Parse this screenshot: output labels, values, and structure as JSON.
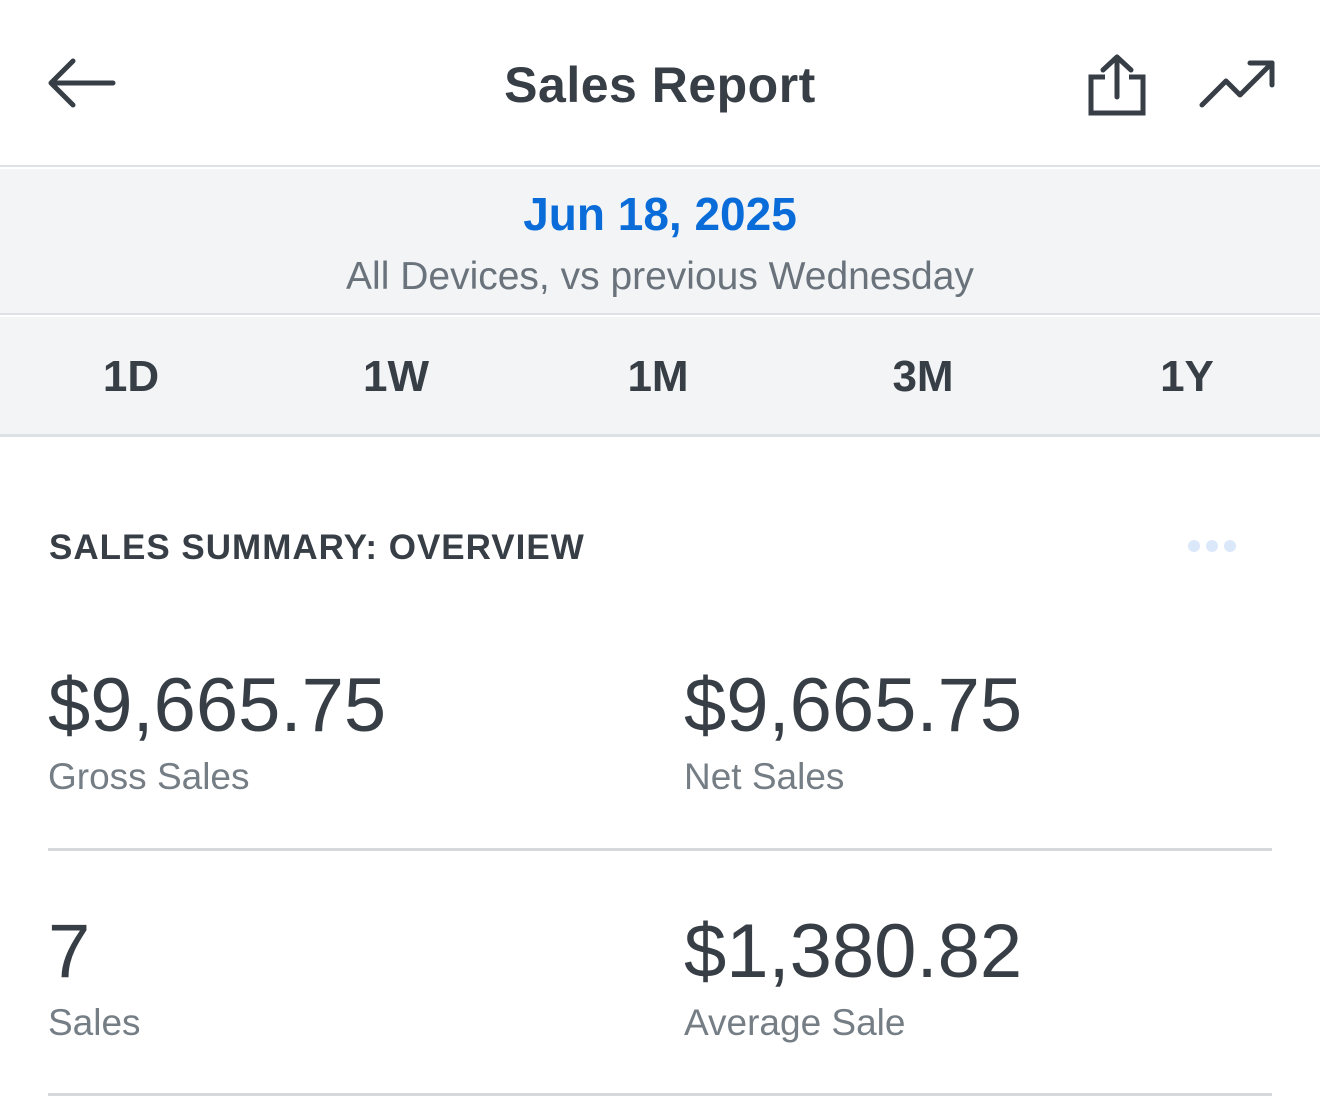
{
  "header": {
    "title": "Sales Report"
  },
  "date_band": {
    "date": "Jun 18, 2025",
    "comparison": "All Devices, vs previous Wednesday"
  },
  "range_tabs": [
    "1D",
    "1W",
    "1M",
    "3M",
    "1Y"
  ],
  "summary": {
    "section_title": "SALES SUMMARY: OVERVIEW",
    "metrics": [
      {
        "value": "$9,665.75",
        "label": "Gross Sales"
      },
      {
        "value": "$9,665.75",
        "label": "Net Sales"
      },
      {
        "value": "7",
        "label": "Sales"
      },
      {
        "value": "$1,380.82",
        "label": "Average Sale"
      }
    ]
  },
  "icons": {
    "back": "arrow-left-icon",
    "share": "share-icon",
    "trend": "trending-up-icon",
    "more": "more-horizontal-icon"
  },
  "colors": {
    "accent": "#0a6cd8",
    "text": "#373e45",
    "muted": "#6a737c",
    "band": "#f2f4f6"
  }
}
